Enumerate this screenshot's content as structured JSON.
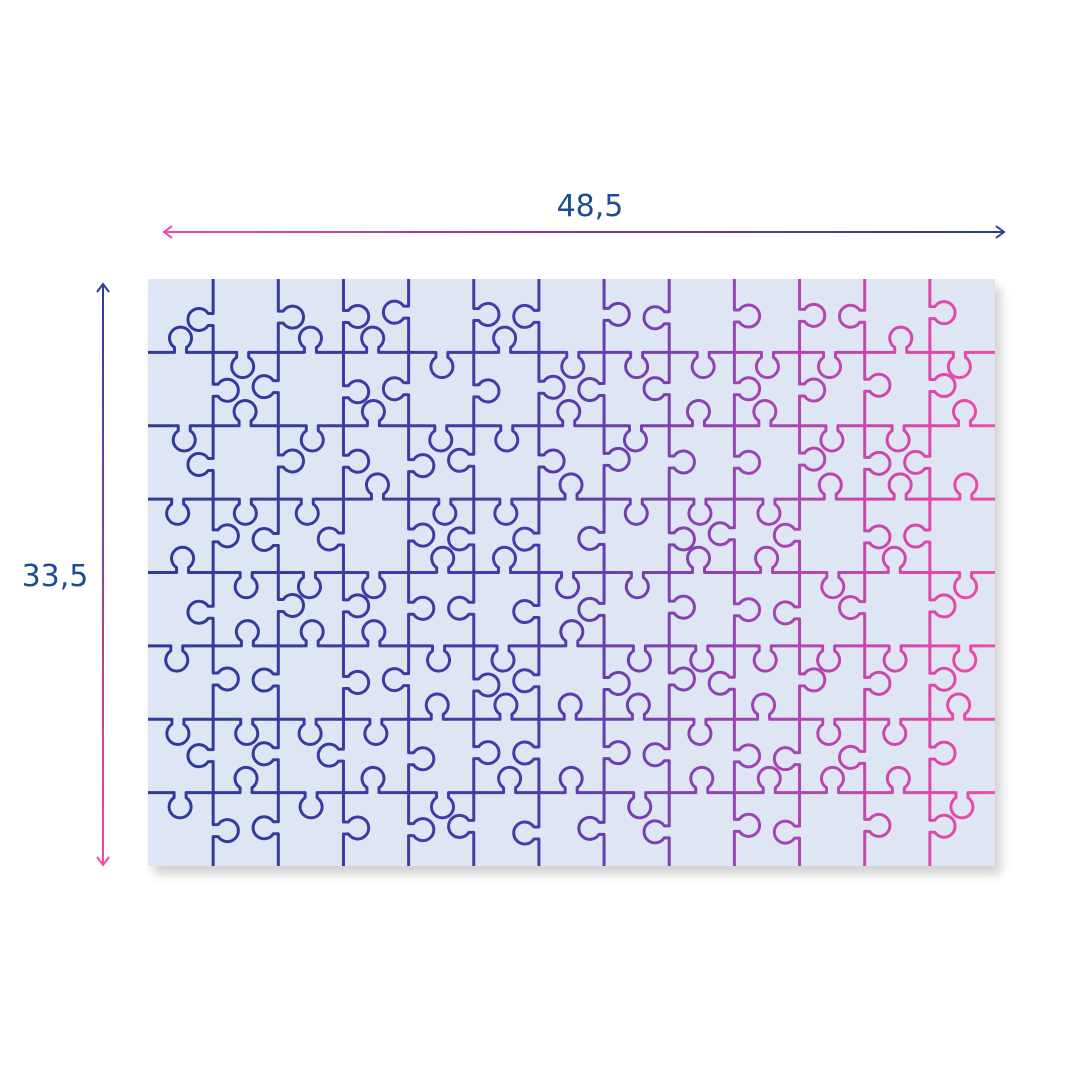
{
  "dimensions": {
    "width_label": "48,5",
    "height_label": "33,5"
  }
}
